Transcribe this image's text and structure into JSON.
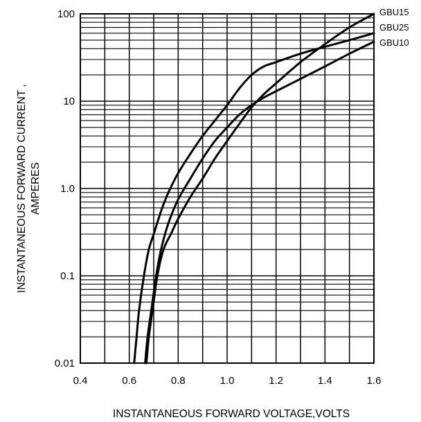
{
  "chart_data": {
    "type": "line",
    "xlabel": "INSTANTANEOUS FORWARD VOLTAGE,VOLTS",
    "ylabel_lines": [
      "INSTANTANEOUS  FORWARD  CURRENT ,",
      "AMPERES"
    ],
    "xlim": [
      0.4,
      1.6
    ],
    "ylim": [
      0.01,
      100
    ],
    "yscale": "log",
    "grid": true,
    "x_ticks": [
      "0.4",
      "0.6",
      "0.8",
      "1.0",
      "1.2",
      "1.4",
      "1.6"
    ],
    "y_ticks": [
      "0.01",
      "0.1",
      "1.0",
      "10",
      "100"
    ],
    "series": [
      {
        "name": "GBU15",
        "x": [
          0.62,
          0.63,
          0.64,
          0.66,
          0.68,
          0.7,
          0.73,
          0.76,
          0.8,
          0.85,
          0.9,
          0.95,
          1.0,
          1.05,
          1.1,
          1.15,
          1.2,
          1.3,
          1.4,
          1.5,
          1.6
        ],
        "y": [
          0.01,
          0.02,
          0.04,
          0.1,
          0.2,
          0.3,
          0.55,
          0.9,
          1.5,
          2.5,
          4,
          6,
          9,
          14,
          20,
          25,
          28,
          35,
          42,
          50,
          60
        ]
      },
      {
        "name": "GBU25",
        "x": [
          0.665,
          0.675,
          0.69,
          0.71,
          0.73,
          0.76,
          0.8,
          0.85,
          0.9,
          0.95,
          1.0,
          1.05,
          1.1,
          1.15,
          1.2,
          1.3,
          1.4,
          1.5,
          1.6
        ],
        "y": [
          0.01,
          0.02,
          0.04,
          0.1,
          0.2,
          0.4,
          0.75,
          1.3,
          2.2,
          3.5,
          5,
          7,
          9,
          11,
          13,
          18,
          25,
          35,
          48
        ]
      },
      {
        "name": "GBU10",
        "x": [
          0.67,
          0.68,
          0.695,
          0.715,
          0.74,
          0.77,
          0.8,
          0.85,
          0.9,
          0.95,
          1.0,
          1.05,
          1.1,
          1.15,
          1.2,
          1.3,
          1.4,
          1.5,
          1.6
        ],
        "y": [
          0.01,
          0.02,
          0.04,
          0.1,
          0.2,
          0.3,
          0.45,
          0.8,
          1.3,
          2.2,
          3.5,
          5.5,
          8.5,
          12,
          16,
          28,
          45,
          70,
          100
        ]
      }
    ],
    "series_label_order": [
      "GBU15",
      "GBU25",
      "GBU10"
    ]
  }
}
